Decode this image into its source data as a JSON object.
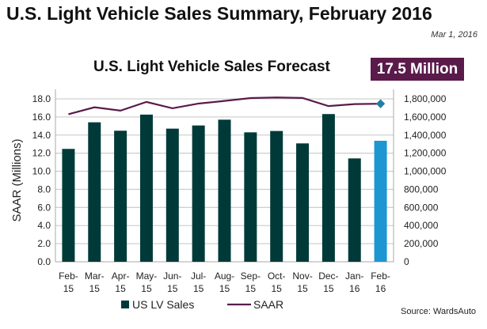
{
  "header": {
    "title": "U.S. Light Vehicle Sales Summary, February 2016",
    "date": "Mar 1, 2016"
  },
  "badge": "17.5 Million",
  "source": "Source: WardsAuto",
  "colors": {
    "bar": "#003a38",
    "bar_highlight": "#1e96d2",
    "line": "#5a1a4a",
    "marker": "#1e7fa8",
    "badge": "#5a1a4a"
  },
  "chart_data": {
    "type": "bar+line",
    "title": "U.S. Light Vehicle Sales Forecast",
    "ylabel": "SAAR (Millions)",
    "categories": [
      [
        "Feb-",
        "15"
      ],
      [
        "Mar-",
        "15"
      ],
      [
        "Apr-",
        "15"
      ],
      [
        "May-",
        "15"
      ],
      [
        "Jun-",
        "15"
      ],
      [
        "Jul-",
        "15"
      ],
      [
        "Aug-",
        "15"
      ],
      [
        "Sep-",
        "15"
      ],
      [
        "Oct-",
        "15"
      ],
      [
        "Nov-",
        "15"
      ],
      [
        "Dec-",
        "15"
      ],
      [
        "Jan-",
        "16"
      ],
      [
        "Feb-",
        "16"
      ]
    ],
    "left_axis": {
      "ylim": [
        0,
        18
      ],
      "ticks": [
        "0.0",
        "2.0",
        "4.0",
        "6.0",
        "8.0",
        "10.0",
        "12.0",
        "14.0",
        "16.0",
        "18.0"
      ]
    },
    "right_axis": {
      "ylim": [
        0,
        1800000
      ],
      "ticks": [
        "0",
        "200,000",
        "400,000",
        "600,000",
        "800,000",
        "1,000,000",
        "1,200,000",
        "1,400,000",
        "1,600,000",
        "1,800,000"
      ]
    },
    "grid": true,
    "legend": "bottom",
    "series": [
      {
        "name": "US LV Sales",
        "type": "bar",
        "axis": "right",
        "values": [
          1247000,
          1541000,
          1448000,
          1626000,
          1471000,
          1506000,
          1570000,
          1430000,
          1445000,
          1308000,
          1632000,
          1142000,
          1337000
        ]
      },
      {
        "name": "SAAR",
        "type": "line",
        "axis": "left",
        "values": [
          16.3,
          17.07,
          16.7,
          17.66,
          16.96,
          17.48,
          17.77,
          18.09,
          18.15,
          18.1,
          17.2,
          17.42,
          17.46
        ]
      }
    ]
  }
}
